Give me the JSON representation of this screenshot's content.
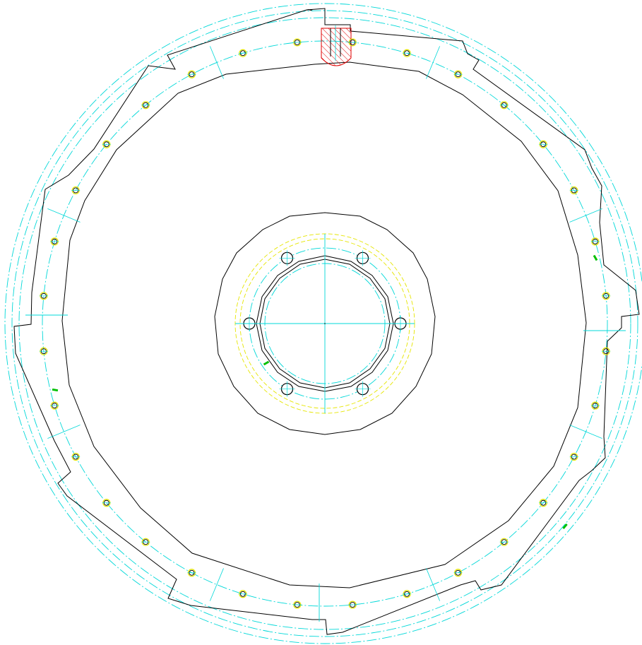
{
  "drawing": {
    "tilde_mark": "~",
    "colors": {
      "outline": "#000000",
      "centerline": "#00d8d8",
      "hidden": "#e6e600",
      "hatch": "#e00000",
      "marker": "#00c000"
    },
    "outer_bolt_holes": 32,
    "inner_bolt_holes": 6
  }
}
